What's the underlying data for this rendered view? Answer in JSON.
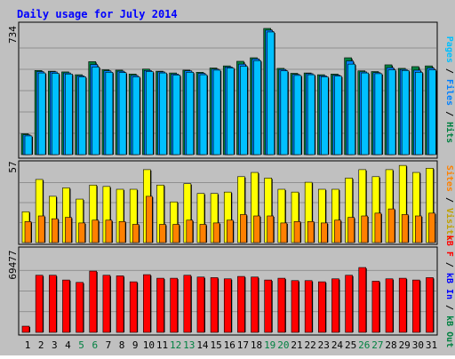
{
  "chart_data": [
    {
      "type": "bar",
      "title": "Daily usage for July 2014",
      "categories": [
        "1",
        "2",
        "3",
        "4",
        "5",
        "6",
        "7",
        "8",
        "9",
        "10",
        "11",
        "12",
        "13",
        "14",
        "15",
        "16",
        "17",
        "18",
        "19",
        "20",
        "21",
        "22",
        "23",
        "24",
        "25",
        "26",
        "27",
        "28",
        "29",
        "30",
        "31"
      ],
      "weekend_days": [
        "5",
        "6",
        "12",
        "13",
        "19",
        "20",
        "26",
        "27"
      ],
      "y_max_label": "734",
      "ylim": [
        0,
        734
      ],
      "ylabel_parts": [
        "Pages",
        "Files",
        "Hits"
      ],
      "series": [
        {
          "name": "Hits",
          "color": "#008040",
          "values": [
            118,
            476,
            472,
            468,
            452,
            526,
            480,
            478,
            456,
            484,
            472,
            462,
            478,
            466,
            490,
            502,
            528,
            548,
            714,
            488,
            460,
            462,
            452,
            456,
            548,
            474,
            470,
            508,
            488,
            498,
            502
          ]
        },
        {
          "name": "Files",
          "color": "#0080ff",
          "values": [
            112,
            470,
            468,
            462,
            446,
            510,
            474,
            472,
            448,
            476,
            468,
            456,
            474,
            460,
            484,
            496,
            512,
            542,
            704,
            482,
            454,
            458,
            446,
            450,
            530,
            468,
            464,
            492,
            482,
            478,
            490
          ]
        },
        {
          "name": "Pages",
          "color": "#00c0ff",
          "values": [
            106,
            462,
            460,
            456,
            440,
            496,
            466,
            464,
            440,
            470,
            462,
            450,
            466,
            452,
            478,
            490,
            500,
            532,
            694,
            474,
            448,
            452,
            440,
            444,
            512,
            462,
            458,
            480,
            476,
            466,
            480
          ]
        }
      ]
    },
    {
      "type": "bar",
      "categories": [
        "1",
        "2",
        "3",
        "4",
        "5",
        "6",
        "7",
        "8",
        "9",
        "10",
        "11",
        "12",
        "13",
        "14",
        "15",
        "16",
        "17",
        "18",
        "19",
        "20",
        "21",
        "22",
        "23",
        "24",
        "25",
        "26",
        "27",
        "28",
        "29",
        "30",
        "31"
      ],
      "y_max_label": "57",
      "ylim": [
        0,
        57
      ],
      "ylabel_parts": [
        "Sites",
        "Visits"
      ],
      "series": [
        {
          "name": "Visits",
          "color": "#ffff00",
          "values": [
            22,
            45,
            33,
            39,
            31,
            41,
            40,
            38,
            38,
            52,
            41,
            29,
            42,
            35,
            35,
            36,
            47,
            50,
            46,
            38,
            36,
            43,
            38,
            38,
            46,
            52,
            47,
            52,
            55,
            50,
            53
          ]
        },
        {
          "name": "Sites",
          "color": "#ff8000",
          "values": [
            15,
            19,
            17,
            18,
            14,
            16,
            16,
            15,
            13,
            33,
            13,
            13,
            16,
            13,
            14,
            16,
            20,
            19,
            19,
            14,
            15,
            15,
            14,
            16,
            18,
            19,
            21,
            24,
            20,
            19,
            21
          ]
        }
      ]
    },
    {
      "type": "bar",
      "categories": [
        "1",
        "2",
        "3",
        "4",
        "5",
        "6",
        "7",
        "8",
        "9",
        "10",
        "11",
        "12",
        "13",
        "14",
        "15",
        "16",
        "17",
        "18",
        "19",
        "20",
        "21",
        "22",
        "23",
        "24",
        "25",
        "26",
        "27",
        "28",
        "29",
        "30",
        "31"
      ],
      "y_max_label": "69477",
      "ylim": [
        0,
        69477
      ],
      "ylabel_parts": [
        "kB F",
        "kB In",
        "kB Out"
      ],
      "series": [
        {
          "name": "kB F",
          "color": "#ff0000",
          "values": [
            5200,
            48000,
            48000,
            44000,
            42000,
            51500,
            48000,
            47500,
            42500,
            48500,
            45500,
            45500,
            48000,
            46500,
            46000,
            45000,
            47000,
            46500,
            44000,
            45500,
            43500,
            43500,
            42500,
            45000,
            48000,
            54500,
            43000,
            45000,
            45500,
            44000,
            46000
          ]
        }
      ]
    }
  ],
  "colors": {
    "frame_bg": "#c0c0c0",
    "panel_bg": "#c0c0c0",
    "title": "#0000ff",
    "grid": "#808080",
    "axis_text": "#000000",
    "weekend_day": "#008040"
  }
}
